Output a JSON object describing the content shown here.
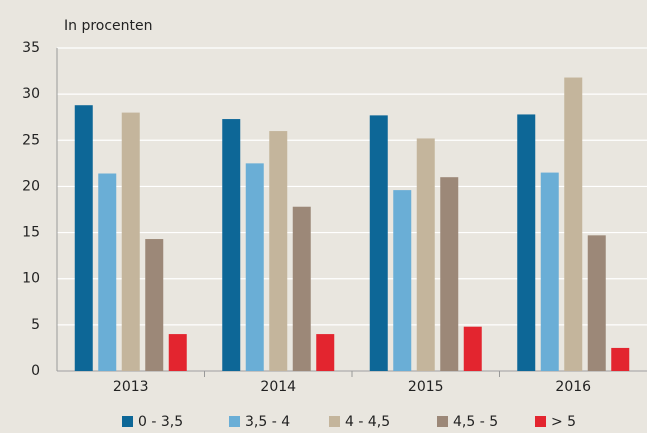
{
  "chart_data": {
    "type": "bar",
    "ylabel": "In procenten",
    "categories": [
      "2013",
      "2014",
      "2015",
      "2016"
    ],
    "series": [
      {
        "name": "0 - 3,5",
        "color": "#0d6797",
        "values": [
          28.8,
          27.3,
          27.7,
          27.8
        ]
      },
      {
        "name": "3,5 - 4",
        "color": "#6aaed6",
        "values": [
          21.4,
          22.5,
          19.6,
          21.5
        ]
      },
      {
        "name": "4 - 4,5",
        "color": "#c4b59c",
        "values": [
          28.0,
          26.0,
          25.2,
          31.8
        ]
      },
      {
        "name": "4,5 - 5",
        "color": "#9c8878",
        "values": [
          14.3,
          17.8,
          21.0,
          14.7
        ]
      },
      {
        "name": "> 5",
        "color": "#e3252f",
        "values": [
          4.0,
          4.0,
          4.8,
          2.5
        ]
      }
    ],
    "ylim": [
      0,
      35
    ],
    "yticks": [
      0,
      5,
      10,
      15,
      20,
      25,
      30,
      35
    ],
    "grid": true,
    "legend": "bottom"
  }
}
